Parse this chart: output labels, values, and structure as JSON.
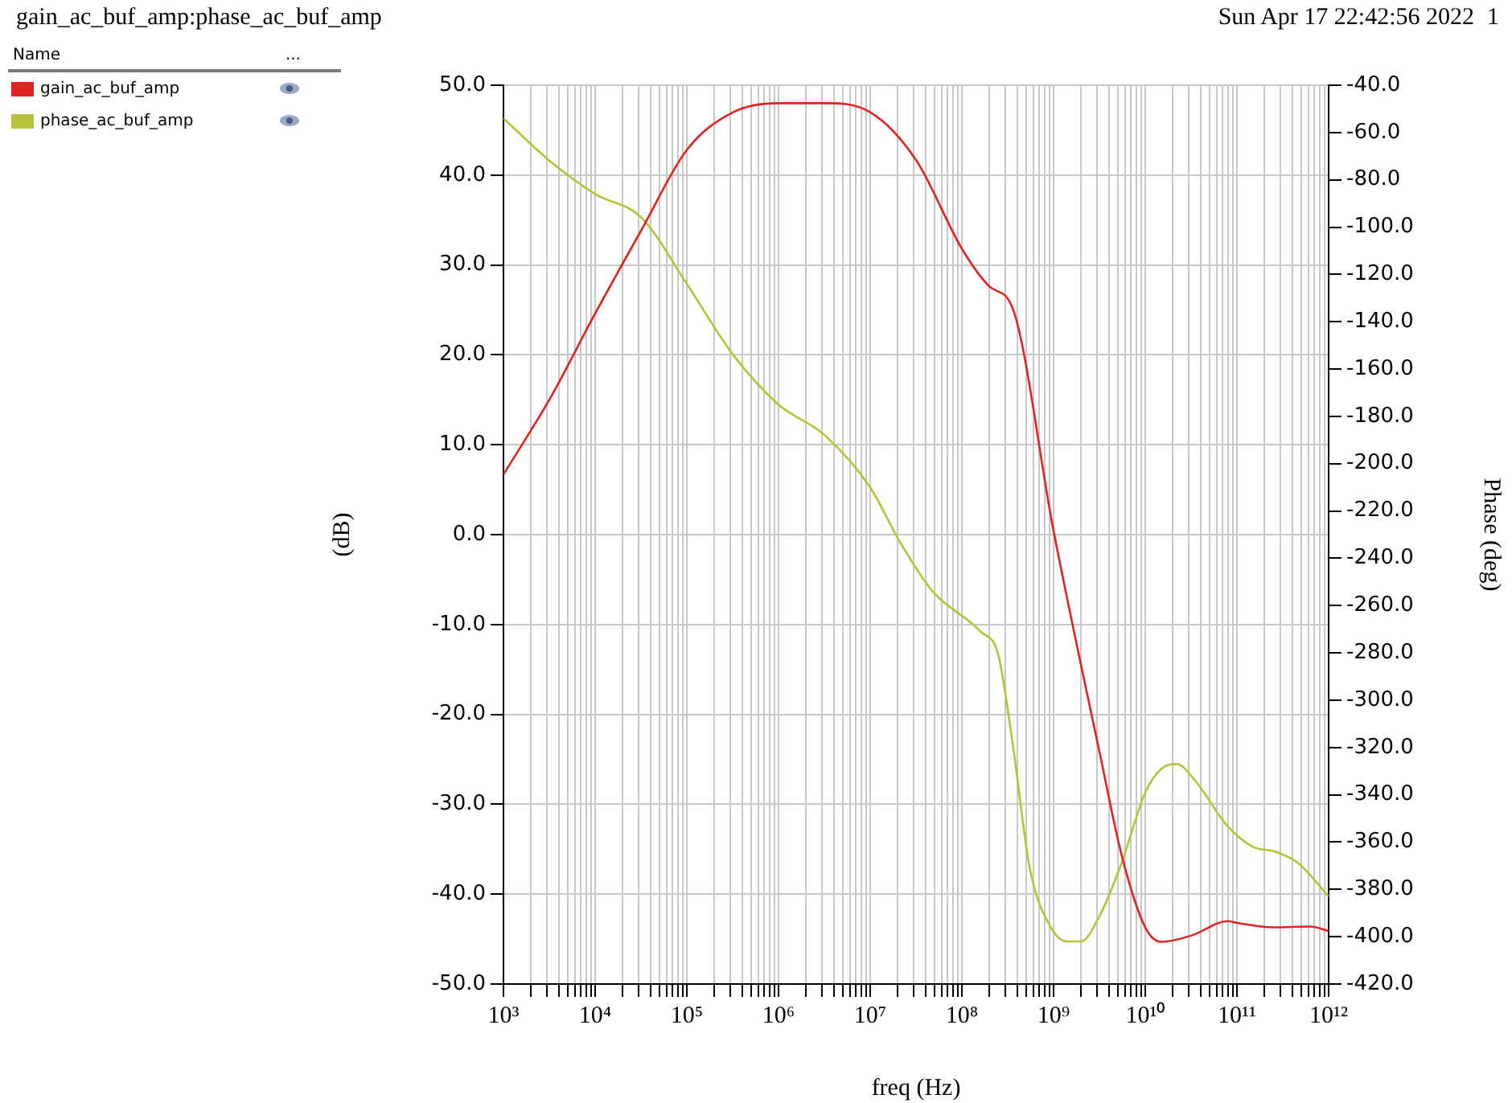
{
  "chart_data": {
    "type": "line",
    "title": "gain_ac_buf_amp:phase_ac_buf_amp",
    "xlabel": "freq (Hz)",
    "ylabel": "(dB)",
    "y2label": "Phase (deg)",
    "legend_title": "Name",
    "annotations": [
      "...",
      "Sun Apr 17 22:42:56 2022",
      "1"
    ],
    "legend": "left",
    "grid": true,
    "log": "x",
    "marker": "none",
    "line_style": "solid",
    "xlim": [
      1000,
      1000000000000
    ],
    "xticks": [
      {
        "value": 1000,
        "label": "10³"
      },
      {
        "value": 2000,
        "label": null
      },
      {
        "value": 3000,
        "label": null
      },
      {
        "value": 4000,
        "label": null
      },
      {
        "value": 5000,
        "label": null
      },
      {
        "value": 6000,
        "label": null
      },
      {
        "value": 7000,
        "label": null
      },
      {
        "value": 8000,
        "label": null
      },
      {
        "value": 9000,
        "label": null
      },
      {
        "value": 10000,
        "label": "10⁴"
      },
      {
        "value": 20000,
        "label": null
      },
      {
        "value": 30000,
        "label": null
      },
      {
        "value": 40000,
        "label": null
      },
      {
        "value": 50000,
        "label": null
      },
      {
        "value": 60000,
        "label": null
      },
      {
        "value": 70000,
        "label": null
      },
      {
        "value": 80000,
        "label": null
      },
      {
        "value": 90000,
        "label": null
      },
      {
        "value": 100000,
        "label": "10⁵"
      },
      {
        "value": 200000,
        "label": null
      },
      {
        "value": 300000,
        "label": null
      },
      {
        "value": 400000,
        "label": null
      },
      {
        "value": 500000,
        "label": null
      },
      {
        "value": 600000,
        "label": null
      },
      {
        "value": 700000,
        "label": null
      },
      {
        "value": 800000,
        "label": null
      },
      {
        "value": 900000,
        "label": null
      },
      {
        "value": 1000000,
        "label": "10⁶"
      },
      {
        "value": 2000000,
        "label": null
      },
      {
        "value": 3000000,
        "label": null
      },
      {
        "value": 4000000,
        "label": null
      },
      {
        "value": 5000000,
        "label": null
      },
      {
        "value": 6000000,
        "label": null
      },
      {
        "value": 7000000,
        "label": null
      },
      {
        "value": 8000000,
        "label": null
      },
      {
        "value": 9000000,
        "label": null
      },
      {
        "value": 10000000,
        "label": "10⁷"
      },
      {
        "value": 20000000,
        "label": null
      },
      {
        "value": 30000000,
        "label": null
      },
      {
        "value": 40000000,
        "label": null
      },
      {
        "value": 50000000,
        "label": null
      },
      {
        "value": 60000000,
        "label": null
      },
      {
        "value": 70000000,
        "label": null
      },
      {
        "value": 80000000,
        "label": null
      },
      {
        "value": 90000000,
        "label": null
      },
      {
        "value": 100000000,
        "label": "10⁸"
      },
      {
        "value": 200000000,
        "label": null
      },
      {
        "value": 300000000,
        "label": null
      },
      {
        "value": 400000000,
        "label": null
      },
      {
        "value": 500000000,
        "label": null
      },
      {
        "value": 600000000,
        "label": null
      },
      {
        "value": 700000000,
        "label": null
      },
      {
        "value": 800000000,
        "label": null
      },
      {
        "value": 900000000,
        "label": null
      },
      {
        "value": 1000000000,
        "label": "10⁹"
      },
      {
        "value": 2000000000,
        "label": null
      },
      {
        "value": 3000000000,
        "label": null
      },
      {
        "value": 4000000000,
        "label": null
      },
      {
        "value": 5000000000,
        "label": null
      },
      {
        "value": 6000000000,
        "label": null
      },
      {
        "value": 7000000000,
        "label": null
      },
      {
        "value": 8000000000,
        "label": null
      },
      {
        "value": 9000000000,
        "label": null
      },
      {
        "value": 10000000000,
        "label": "10¹⁰"
      },
      {
        "value": 20000000000,
        "label": null
      },
      {
        "value": 30000000000,
        "label": null
      },
      {
        "value": 40000000000,
        "label": null
      },
      {
        "value": 50000000000,
        "label": null
      },
      {
        "value": 60000000000,
        "label": null
      },
      {
        "value": 70000000000,
        "label": null
      },
      {
        "value": 80000000000,
        "label": null
      },
      {
        "value": 90000000000,
        "label": null
      },
      {
        "value": 100000000000,
        "label": "10¹¹"
      },
      {
        "value": 200000000000,
        "label": null
      },
      {
        "value": 300000000000,
        "label": null
      },
      {
        "value": 400000000000,
        "label": null
      },
      {
        "value": 500000000000,
        "label": null
      },
      {
        "value": 600000000000,
        "label": null
      },
      {
        "value": 700000000000,
        "label": null
      },
      {
        "value": 800000000000,
        "label": null
      },
      {
        "value": 900000000000,
        "label": null
      },
      {
        "value": 1000000000000,
        "label": "10¹²"
      }
    ],
    "ylim": [
      -50,
      50
    ],
    "yticks": [
      {
        "value": -50,
        "label": "-50.0"
      },
      {
        "value": -40,
        "label": "-40.0"
      },
      {
        "value": -30,
        "label": "-30.0"
      },
      {
        "value": -20,
        "label": "-20.0"
      },
      {
        "value": -10,
        "label": "-10.0"
      },
      {
        "value": 0,
        "label": "0.0"
      },
      {
        "value": 10,
        "label": "10.0"
      },
      {
        "value": 20,
        "label": "20.0"
      },
      {
        "value": 30,
        "label": "30.0"
      },
      {
        "value": 40,
        "label": "40.0"
      },
      {
        "value": 50,
        "label": "50.0"
      }
    ],
    "y2lim": [
      -420,
      -40
    ],
    "y2ticks": [
      {
        "value": -420,
        "label": "-420.0"
      },
      {
        "value": -400,
        "label": "-400.0"
      },
      {
        "value": -380,
        "label": "-380.0"
      },
      {
        "value": -360,
        "label": "-360.0"
      },
      {
        "value": -340,
        "label": "-340.0"
      },
      {
        "value": -320,
        "label": "-320.0"
      },
      {
        "value": -300,
        "label": "-300.0"
      },
      {
        "value": -280,
        "label": "-280.0"
      },
      {
        "value": -260,
        "label": "-260.0"
      },
      {
        "value": -240,
        "label": "-240.0"
      },
      {
        "value": -220,
        "label": "-220.0"
      },
      {
        "value": -200,
        "label": "-200.0"
      },
      {
        "value": -180,
        "label": "-180.0"
      },
      {
        "value": -160,
        "label": "-160.0"
      },
      {
        "value": -140,
        "label": "-140.0"
      },
      {
        "value": -120,
        "label": "-120.0"
      },
      {
        "value": -100,
        "label": "-100.0"
      },
      {
        "value": -80,
        "label": "-80.0"
      },
      {
        "value": -60,
        "label": "-60.0"
      },
      {
        "value": -40,
        "label": "-40.0"
      }
    ],
    "series": [
      {
        "name": "gain_ac_buf_amp",
        "color": "#e02424",
        "x": [
          1000,
          3200,
          10000,
          32000,
          100000,
          320000,
          1000000,
          3200000,
          10000000,
          32000000,
          100000000,
          200000000,
          360000000,
          1000000000,
          3200000000,
          5600000000,
          10000000000,
          15000000000,
          32000000000,
          80000000000,
          100000000000,
          250000000000,
          630000000000,
          1000000000000
        ],
        "values": [
          6.7,
          15.1,
          24.6,
          33.9,
          42.8,
          47,
          48,
          48,
          47,
          41.6,
          31.8,
          27.6,
          25.1,
          0.4,
          -24.4,
          -35.9,
          -43.7,
          -45.3,
          -44.6,
          -43,
          -43.2,
          -43.7,
          -43.6,
          -44.1
        ]
      },
      {
        "name": "phase_ac_buf_amp",
        "color": "#b5c23a",
        "axis": "y2",
        "x": [
          1000,
          3200,
          10000,
          32000,
          100000,
          320000,
          1000000,
          3200000,
          10000000,
          21000000,
          48000000,
          160000000,
          250000000,
          360000000,
          550000000,
          900000000,
          1400000000,
          2000000000,
          3100000000,
          5500000000,
          10000000000,
          15000000000,
          22000000000,
          35000000000,
          78000000000,
          150000000000,
          260000000000,
          470000000000,
          1000000000000
        ],
        "values": [
          -54,
          -72,
          -86,
          -96,
          -124,
          -154,
          -175,
          -188,
          -210,
          -233,
          -254,
          -271,
          -281,
          -319,
          -371,
          -395,
          -402,
          -402,
          -392,
          -369,
          -339,
          -329,
          -327,
          -334,
          -353,
          -362,
          -364,
          -369,
          -383
        ]
      }
    ]
  }
}
